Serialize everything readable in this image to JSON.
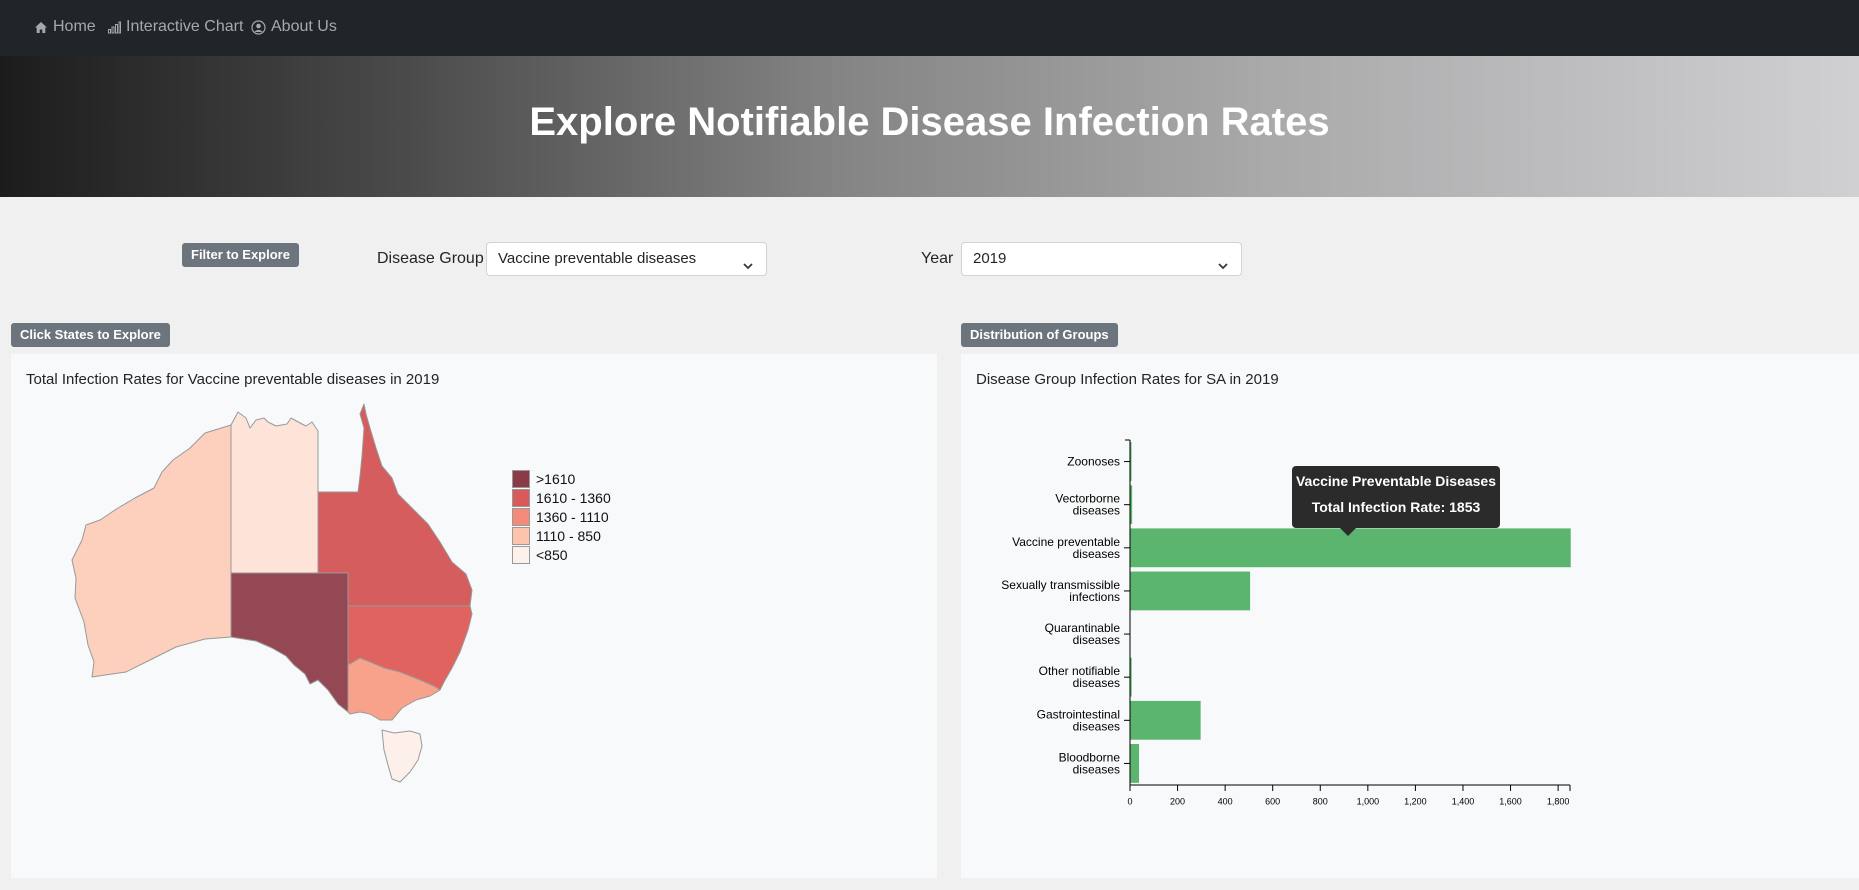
{
  "nav": {
    "items": [
      {
        "label": "Home",
        "icon": "home-icon"
      },
      {
        "label": "Interactive Chart",
        "icon": "bar-chart-icon"
      },
      {
        "label": "About Us",
        "icon": "user-circle-icon"
      }
    ]
  },
  "hero": {
    "title": "Explore Notifiable Disease Infection Rates"
  },
  "filters": {
    "badge": "Filter to Explore",
    "disease_label": "Disease Group",
    "disease_value": "Vaccine preventable diseases",
    "year_label": "Year",
    "year_value": "2019"
  },
  "map_panel": {
    "badge": "Click States to Explore",
    "title": "Total Infection Rates for Vaccine preventable diseases in 2019",
    "legend": [
      {
        "label": ">1610",
        "color": "#8b3a48"
      },
      {
        "label": "1610 - 1360",
        "color": "#d95a5a"
      },
      {
        "label": "1360 - 1110",
        "color": "#f58a78"
      },
      {
        "label": "1110 - 850",
        "color": "#fcc3ad"
      },
      {
        "label": "<850",
        "color": "#fdf1ec"
      }
    ],
    "state_colors": {
      "WA": "#fcd0bd",
      "NT": "#fde3d8",
      "QLD": "#d55d5d",
      "SA": "#944853",
      "NSW": "#e06360",
      "VIC": "#f8a28b",
      "TAS": "#fdf0ea"
    }
  },
  "bar_panel": {
    "badge": "Distribution of Groups",
    "title": "Disease Group Infection Rates for SA in 2019",
    "tooltip": {
      "line1": "Vaccine Preventable Diseases",
      "line2": "Total Infection Rate: 1853"
    }
  },
  "chart_data": {
    "type": "bar",
    "orientation": "horizontal",
    "title": "Disease Group Infection Rates for SA in 2019",
    "categories": [
      [
        "Zoonoses"
      ],
      [
        "Vectorborne",
        "diseases"
      ],
      [
        "Vaccine preventable",
        "diseases"
      ],
      [
        "Sexually transmissible",
        "infections"
      ],
      [
        "Quarantinable",
        "diseases"
      ],
      [
        "Other notifiable",
        "diseases"
      ],
      [
        "Gastrointestinal",
        "diseases"
      ],
      [
        "Bloodborne",
        "diseases"
      ]
    ],
    "values": [
      2,
      9,
      1853,
      505,
      0,
      7,
      297,
      38
    ],
    "xlim": [
      0,
      1850
    ],
    "xticks": [
      0,
      200,
      400,
      600,
      800,
      1000,
      1200,
      1400,
      1600,
      1800
    ],
    "xtick_labels": [
      "0",
      "200",
      "400",
      "600",
      "800",
      "1,000",
      "1,200",
      "1,400",
      "1,600",
      "1,800"
    ],
    "bar_color": "#5bb56f",
    "grid": false
  }
}
